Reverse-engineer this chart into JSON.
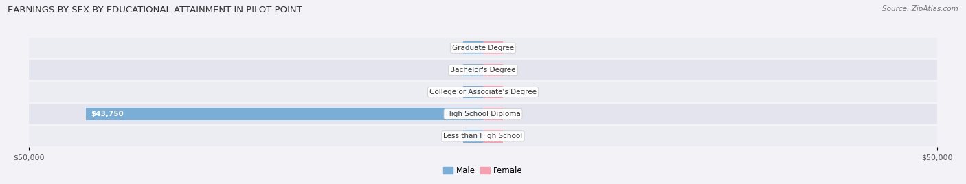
{
  "title": "EARNINGS BY SEX BY EDUCATIONAL ATTAINMENT IN PILOT POINT",
  "source": "Source: ZipAtlas.com",
  "categories": [
    "Less than High School",
    "High School Diploma",
    "College or Associate's Degree",
    "Bachelor's Degree",
    "Graduate Degree"
  ],
  "male_values": [
    0,
    43750,
    0,
    0,
    0
  ],
  "female_values": [
    0,
    0,
    0,
    0,
    0
  ],
  "male_color": "#7aaed6",
  "female_color": "#f4a0b0",
  "male_label": "Male",
  "female_label": "Female",
  "xlim": 50000,
  "background_color": "#f2f2f7",
  "row_colors": [
    "#ececf3",
    "#e4e4ee"
  ],
  "title_fontsize": 9.5,
  "source_fontsize": 7.5,
  "bar_height": 0.58,
  "min_bar_display": 2200
}
